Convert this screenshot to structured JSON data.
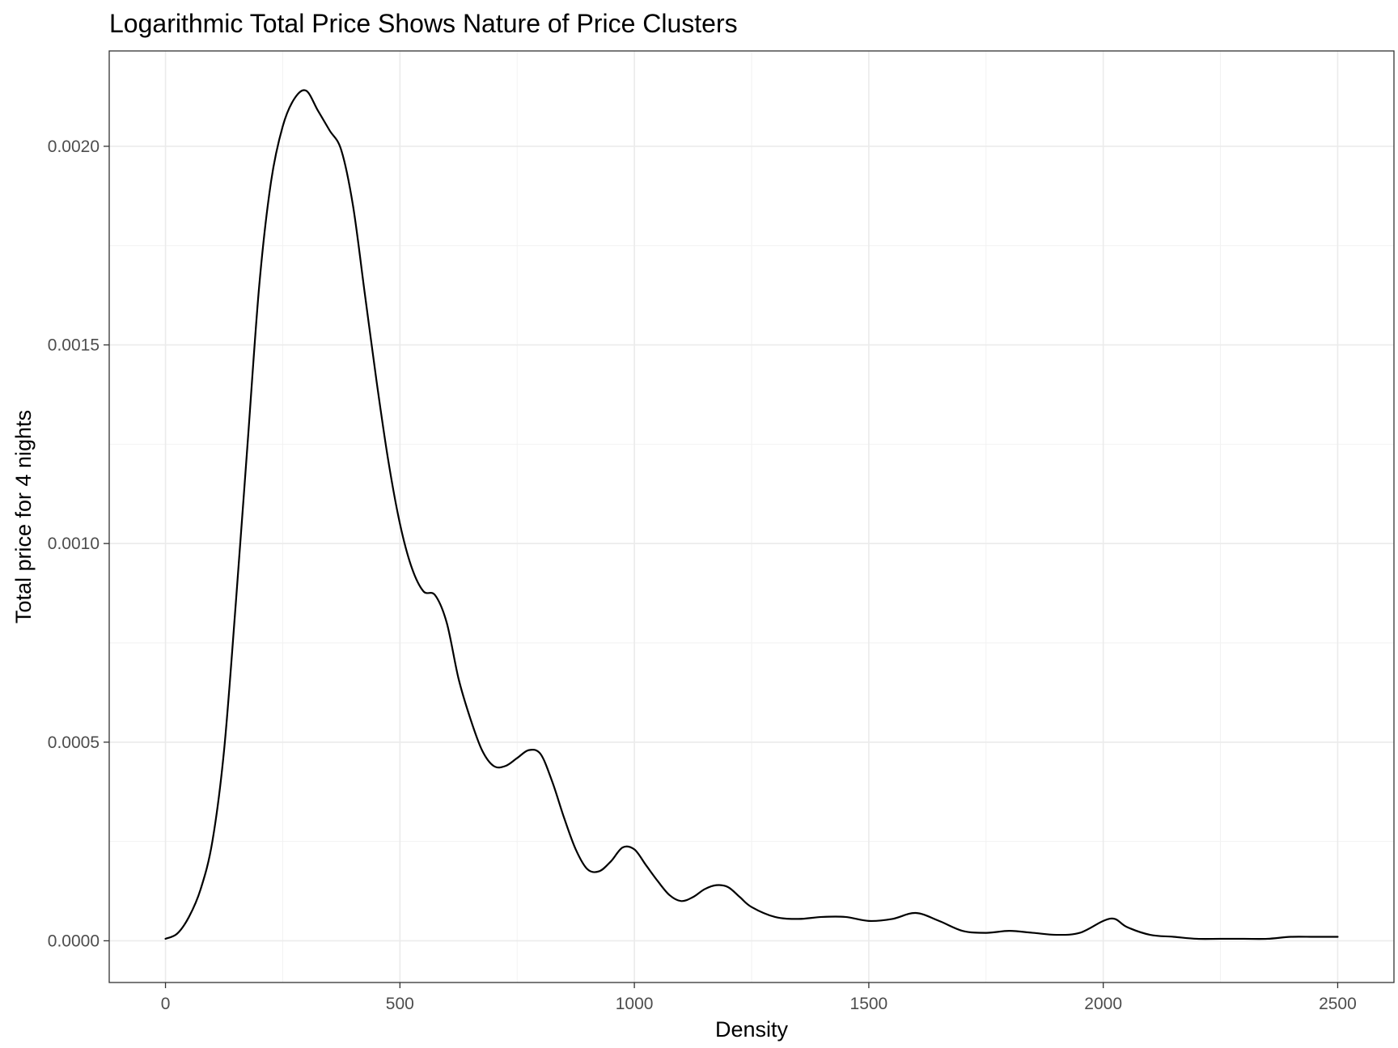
{
  "chart_data": {
    "type": "line",
    "title": "Logarithmic Total Price Shows Nature of Price Clusters",
    "xlabel": "Density",
    "ylabel": "Total price for 4 nights",
    "xlim": [
      -120,
      2620
    ],
    "ylim": [
      -0.000105,
      0.00224
    ],
    "x_ticks": [
      0,
      500,
      1000,
      1500,
      2000,
      2500
    ],
    "x_tick_labels": [
      "0",
      "500",
      "1000",
      "1500",
      "2000",
      "2500"
    ],
    "y_ticks": [
      0,
      0.0005,
      0.001,
      0.0015,
      0.002
    ],
    "y_tick_labels": [
      "0.0000",
      "0.0005",
      "0.0010",
      "0.0015",
      "0.0020"
    ],
    "grid": true,
    "legend": "none",
    "series": [
      {
        "x": [
          0,
          25,
          50,
          75,
          100,
          125,
          150,
          175,
          200,
          225,
          250,
          275,
          300,
          325,
          350,
          375,
          400,
          425,
          450,
          475,
          500,
          525,
          550,
          575,
          600,
          625,
          650,
          675,
          700,
          725,
          750,
          775,
          800,
          825,
          850,
          875,
          900,
          925,
          950,
          975,
          1000,
          1025,
          1050,
          1075,
          1100,
          1125,
          1150,
          1175,
          1200,
          1225,
          1250,
          1300,
          1350,
          1400,
          1450,
          1500,
          1550,
          1600,
          1650,
          1700,
          1750,
          1800,
          1850,
          1900,
          1950,
          2000,
          2025,
          2050,
          2100,
          2150,
          2200,
          2250,
          2300,
          2350,
          2400,
          2450,
          2500
        ],
        "y": [
          5e-06,
          1.8e-05,
          6e-05,
          0.00013,
          0.00025,
          0.00048,
          0.00085,
          0.00125,
          0.00165,
          0.00191,
          0.00205,
          0.00212,
          0.00214,
          0.00209,
          0.00204,
          0.00199,
          0.00185,
          0.00163,
          0.00141,
          0.00121,
          0.00105,
          0.00094,
          0.00088,
          0.00087,
          0.0008,
          0.00066,
          0.00056,
          0.00048,
          0.00044,
          0.00044,
          0.00046,
          0.00048,
          0.00047,
          0.0004,
          0.00031,
          0.00023,
          0.00018,
          0.000175,
          0.0002,
          0.000235,
          0.00023,
          0.00019,
          0.00015,
          0.000115,
          0.0001,
          0.00011,
          0.00013,
          0.00014,
          0.000135,
          0.00011,
          8.5e-05,
          6e-05,
          5.5e-05,
          6e-05,
          6e-05,
          5e-05,
          5.5e-05,
          7e-05,
          5e-05,
          2.5e-05,
          2e-05,
          2.5e-05,
          2e-05,
          1.5e-05,
          2e-05,
          5e-05,
          5.5e-05,
          3.5e-05,
          1.5e-05,
          1e-05,
          5e-06,
          5e-06,
          5e-06,
          5e-06,
          1e-05,
          1e-05,
          1e-05
        ]
      }
    ]
  }
}
